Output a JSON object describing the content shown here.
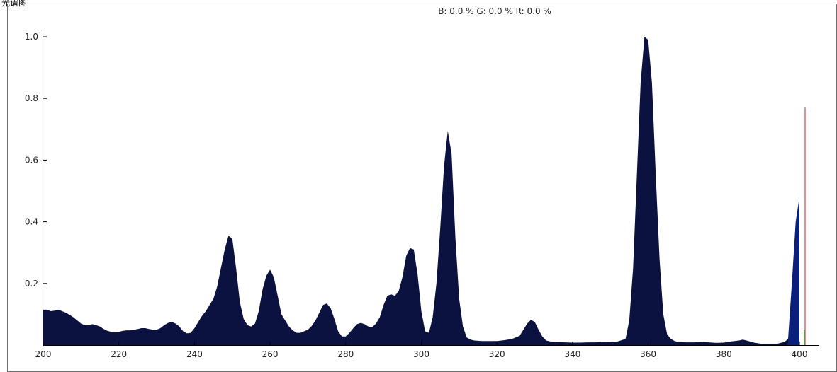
{
  "corner_label": "光谱图",
  "readout": "B: 0.0 %  G: 0.0 %  R: 0.0 %",
  "colors": {
    "main_fill": "#0b1240",
    "tail_fill": "#0a1f7a",
    "red_line": "#e05050",
    "green_line": "#3cb43c"
  },
  "chart_data": {
    "type": "area",
    "title": "",
    "xlabel": "",
    "ylabel": "",
    "xlim": [
      200,
      404
    ],
    "ylim": [
      0,
      1.0
    ],
    "x_ticks": [
      "200",
      "220",
      "240",
      "260",
      "280",
      "300",
      "320",
      "340",
      "360",
      "380",
      "400"
    ],
    "y_ticks": [
      "0.2",
      "0.4",
      "0.6",
      "0.8",
      "1.0"
    ],
    "grid": false,
    "series": [
      {
        "x": [
          200,
          201,
          202,
          203,
          204,
          205,
          206,
          207,
          208,
          209,
          210,
          211,
          212,
          213,
          214,
          215,
          216,
          217,
          218,
          219,
          220,
          221,
          222,
          223,
          224,
          225,
          226,
          227,
          228,
          229,
          230,
          231,
          232,
          233,
          234,
          235,
          236,
          237,
          238,
          239,
          240,
          241,
          242,
          243,
          244,
          245,
          246,
          247,
          248,
          249,
          250,
          251,
          252,
          253,
          254,
          255,
          256,
          257,
          258,
          259,
          260,
          261,
          262,
          263,
          264,
          265,
          266,
          267,
          268,
          269,
          270,
          271,
          272,
          273,
          274,
          275,
          276,
          277,
          278,
          279,
          280,
          281,
          282,
          283,
          284,
          285,
          286,
          287,
          288,
          289,
          290,
          291,
          292,
          293,
          294,
          295,
          296,
          297,
          298,
          299,
          300,
          301,
          302,
          303,
          304,
          305,
          306,
          307,
          308,
          309,
          310,
          311,
          312,
          313,
          314,
          315,
          316,
          317,
          318,
          320,
          322,
          324,
          326,
          327,
          328,
          329,
          330,
          331,
          332,
          333,
          334,
          336,
          338,
          340,
          342,
          344,
          346,
          348,
          350,
          352,
          354,
          355,
          356,
          357,
          358,
          359,
          360,
          361,
          362,
          363,
          364,
          365,
          366,
          367,
          368,
          370,
          372,
          374,
          376,
          378,
          380,
          382,
          384,
          385,
          386,
          388,
          390,
          392,
          394,
          396,
          397
        ],
        "y": [
          0.115,
          0.115,
          0.11,
          0.112,
          0.115,
          0.11,
          0.105,
          0.098,
          0.09,
          0.08,
          0.07,
          0.065,
          0.065,
          0.068,
          0.065,
          0.06,
          0.052,
          0.046,
          0.043,
          0.042,
          0.043,
          0.046,
          0.048,
          0.048,
          0.05,
          0.052,
          0.055,
          0.055,
          0.052,
          0.05,
          0.05,
          0.055,
          0.065,
          0.072,
          0.075,
          0.07,
          0.06,
          0.045,
          0.038,
          0.04,
          0.055,
          0.075,
          0.095,
          0.11,
          0.13,
          0.15,
          0.19,
          0.25,
          0.31,
          0.355,
          0.345,
          0.25,
          0.14,
          0.085,
          0.065,
          0.06,
          0.07,
          0.11,
          0.18,
          0.225,
          0.245,
          0.22,
          0.16,
          0.1,
          0.08,
          0.06,
          0.048,
          0.04,
          0.04,
          0.045,
          0.05,
          0.062,
          0.08,
          0.105,
          0.13,
          0.135,
          0.12,
          0.085,
          0.045,
          0.028,
          0.028,
          0.04,
          0.055,
          0.068,
          0.072,
          0.068,
          0.06,
          0.058,
          0.07,
          0.09,
          0.13,
          0.16,
          0.165,
          0.16,
          0.175,
          0.22,
          0.29,
          0.315,
          0.31,
          0.23,
          0.11,
          0.045,
          0.04,
          0.09,
          0.2,
          0.38,
          0.58,
          0.695,
          0.62,
          0.35,
          0.15,
          0.06,
          0.025,
          0.018,
          0.015,
          0.014,
          0.013,
          0.013,
          0.013,
          0.013,
          0.016,
          0.02,
          0.03,
          0.05,
          0.07,
          0.082,
          0.075,
          0.05,
          0.028,
          0.015,
          0.012,
          0.01,
          0.009,
          0.008,
          0.008,
          0.009,
          0.009,
          0.01,
          0.01,
          0.012,
          0.02,
          0.08,
          0.25,
          0.55,
          0.85,
          1.0,
          0.99,
          0.85,
          0.55,
          0.28,
          0.1,
          0.035,
          0.02,
          0.013,
          0.01,
          0.009,
          0.009,
          0.01,
          0.009,
          0.007,
          0.008,
          0.012,
          0.015,
          0.018,
          0.015,
          0.008,
          0.004,
          0.004,
          0.004,
          0.01,
          0.02
        ],
        "color": "#0b1240"
      },
      {
        "x": [
          397,
          398,
          399,
          400
        ],
        "y": [
          0.02,
          0.2,
          0.4,
          0.48
        ],
        "color": "#0a1f7a"
      }
    ],
    "markers": [
      {
        "x": 401.5,
        "y": 0.77,
        "color": "#e05050"
      },
      {
        "x": 401.3,
        "y": 0.05,
        "color": "#3cb43c"
      }
    ]
  }
}
